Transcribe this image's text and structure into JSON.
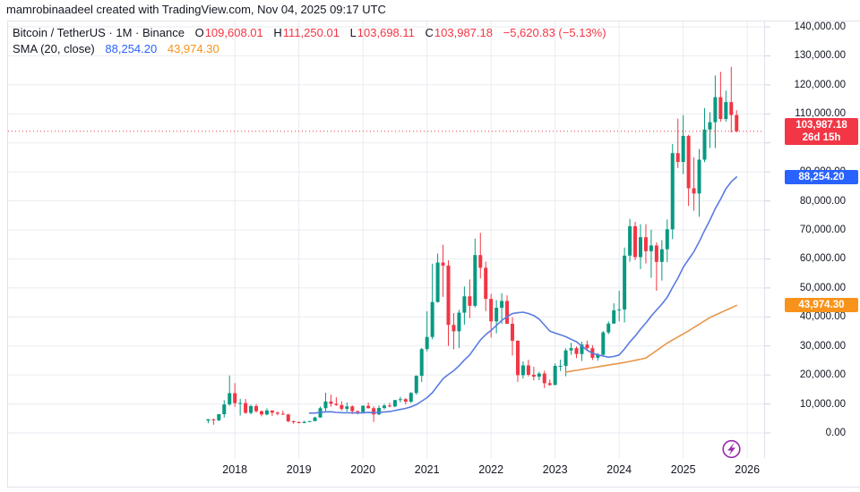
{
  "title": "mamrobinaadeel created with TradingView.com, Nov 04, 2025 09:17 UTC",
  "legend": {
    "symbol_line": "Bitcoin / TetherUS · 1M · Binance",
    "open_label": "O",
    "open": "109,608.01",
    "high_label": "H",
    "high": "111,250.01",
    "low_label": "L",
    "low": "103,698.11",
    "close_label": "C",
    "close": "103,987.18",
    "change": "−5,620.83 (−5.13%)",
    "sma_label": "SMA (20, close)",
    "sma_fast_value": "88,254.20",
    "sma_slow_value": "43,974.30"
  },
  "badges": {
    "last": {
      "text": "103,987.18",
      "countdown": "26d 15h",
      "value": 103987.18,
      "color": "#f23645"
    },
    "sma_fast": {
      "text": "88,254.20",
      "value": 88254.2,
      "color": "#2962ff"
    },
    "sma_slow": {
      "text": "43,974.30",
      "value": 43974.3,
      "color": "#f7931a"
    }
  },
  "price_axis": {
    "labels": [
      {
        "text": "0.00",
        "value": 0
      },
      {
        "text": "10,000.00",
        "value": 10000
      },
      {
        "text": "20,000.00",
        "value": 20000
      },
      {
        "text": "30,000.00",
        "value": 30000
      },
      {
        "text": "40,000.00",
        "value": 40000
      },
      {
        "text": "50,000.00",
        "value": 50000
      },
      {
        "text": "60,000.00",
        "value": 60000
      },
      {
        "text": "70,000.00",
        "value": 70000
      },
      {
        "text": "80,000.00",
        "value": 80000
      },
      {
        "text": "90,000.00",
        "value": 90000
      },
      {
        "text": "110,000.00",
        "value": 110000
      },
      {
        "text": "120,000.00",
        "value": 120000
      },
      {
        "text": "130,000.00",
        "value": 130000
      },
      {
        "text": "140,000.00",
        "value": 140000
      }
    ]
  },
  "time_axis": {
    "labels": [
      {
        "text": "2018",
        "month_index": 5
      },
      {
        "text": "2019",
        "month_index": 17
      },
      {
        "text": "2020",
        "month_index": 29
      },
      {
        "text": "2021",
        "month_index": 41
      },
      {
        "text": "2022",
        "month_index": 53
      },
      {
        "text": "2023",
        "month_index": 65
      },
      {
        "text": "2024",
        "month_index": 77
      },
      {
        "text": "2025",
        "month_index": 89
      },
      {
        "text": "2026",
        "month_index": 101
      }
    ]
  },
  "chart_data": {
    "type": "candlestick",
    "symbol": "Bitcoin / TetherUS",
    "interval": "1M",
    "exchange": "Binance",
    "start_month": "2017-08",
    "y_axis": {
      "min": 0,
      "max": 140000,
      "step": 10000
    },
    "last_close": 103987.18,
    "sma_fast_period": 20,
    "ohlc": [
      [
        4261,
        4745,
        3355,
        4724
      ],
      [
        4689,
        4939,
        2817,
        4378
      ],
      [
        4378,
        6498,
        4110,
        6468
      ],
      [
        6463,
        11300,
        5325,
        9838
      ],
      [
        9837,
        19798,
        9380,
        13716
      ],
      [
        13715,
        17176,
        9035,
        10285
      ],
      [
        10285,
        11786,
        6000,
        10326
      ],
      [
        10325,
        11710,
        6600,
        6923
      ],
      [
        6922,
        9759,
        6430,
        9246
      ],
      [
        9246,
        9996,
        7032,
        7494
      ],
      [
        7494,
        7786,
        5750,
        6390
      ],
      [
        6391,
        8491,
        6070,
        7735
      ],
      [
        7735,
        7760,
        5880,
        7011
      ],
      [
        7011,
        7410,
        6111,
        6626
      ],
      [
        6626,
        7680,
        6205,
        6371
      ],
      [
        6369,
        6615,
        3652,
        4041
      ],
      [
        4041,
        4312,
        3156,
        3702
      ],
      [
        3701,
        4069,
        3349,
        3434
      ],
      [
        3434,
        4190,
        3331,
        3816
      ],
      [
        3816,
        4131,
        3661,
        4105
      ],
      [
        4105,
        5627,
        4054,
        5320
      ],
      [
        5321,
        9074,
        5262,
        8555
      ],
      [
        8555,
        13880,
        7432,
        10854
      ],
      [
        10854,
        13200,
        9049,
        10081
      ],
      [
        10080,
        12325,
        9360,
        9630
      ],
      [
        9630,
        10949,
        7714,
        8290
      ],
      [
        8290,
        10540,
        7293,
        9153
      ],
      [
        9152,
        9550,
        6515,
        7561
      ],
      [
        7561,
        7744,
        6430,
        7195
      ],
      [
        7195,
        9578,
        6853,
        9350
      ],
      [
        9351,
        10500,
        8403,
        8531
      ],
      [
        8531,
        9188,
        3782,
        6412
      ],
      [
        6412,
        9460,
        6150,
        8620
      ],
      [
        8620,
        10067,
        8101,
        9448
      ],
      [
        9448,
        10380,
        8816,
        9137
      ],
      [
        9138,
        11444,
        8893,
        11335
      ],
      [
        11335,
        12468,
        10518,
        11649
      ],
      [
        11649,
        12050,
        9825,
        10776
      ],
      [
        10776,
        14100,
        10371,
        13791
      ],
      [
        13791,
        19863,
        13195,
        19695
      ],
      [
        19695,
        29300,
        17572,
        28923
      ],
      [
        28923,
        41950,
        28130,
        33092
      ],
      [
        33092,
        58352,
        32296,
        45135
      ],
      [
        45134,
        61844,
        44950,
        58740
      ],
      [
        58739,
        64854,
        46930,
        57694
      ],
      [
        57694,
        59500,
        30000,
        37253
      ],
      [
        37253,
        41330,
        28805,
        35045
      ],
      [
        35045,
        42448,
        29278,
        41461
      ],
      [
        41461,
        50500,
        37332,
        47100
      ],
      [
        47100,
        52920,
        39600,
        43824
      ],
      [
        43820,
        67000,
        43283,
        61318
      ],
      [
        61318,
        69000,
        53256,
        56950
      ],
      [
        56950,
        59053,
        42000,
        46216
      ],
      [
        46216,
        47990,
        32917,
        38466
      ],
      [
        38466,
        45821,
        34322,
        43160
      ],
      [
        43160,
        48189,
        37555,
        45510
      ],
      [
        45510,
        47444,
        37578,
        37630
      ],
      [
        37630,
        39918,
        26700,
        31792
      ],
      [
        31792,
        31957,
        17622,
        19924
      ],
      [
        19924,
        24668,
        18780,
        23293
      ],
      [
        23293,
        25211,
        19526,
        20048
      ],
      [
        20048,
        22799,
        18125,
        19416
      ],
      [
        19416,
        21085,
        18190,
        20490
      ],
      [
        20490,
        21473,
        15476,
        17163
      ],
      [
        17163,
        18387,
        16256,
        16537
      ],
      [
        16537,
        23960,
        16499,
        23125
      ],
      [
        23125,
        25250,
        21351,
        23141
      ],
      [
        23141,
        29184,
        19549,
        28465
      ],
      [
        28465,
        31059,
        26942,
        29233
      ],
      [
        29233,
        29820,
        25811,
        27210
      ],
      [
        27210,
        31431,
        24797,
        30472
      ],
      [
        30472,
        31818,
        28850,
        29232
      ],
      [
        29232,
        30242,
        25166,
        25932
      ],
      [
        25932,
        27483,
        24901,
        26962
      ],
      [
        26962,
        35150,
        26538,
        34656
      ],
      [
        34656,
        38450,
        34029,
        37712
      ],
      [
        37712,
        44700,
        37615,
        42265
      ],
      [
        42265,
        48969,
        38501,
        42580
      ],
      [
        42580,
        63933,
        38100,
        61130
      ],
      [
        61130,
        73777,
        59005,
        71280
      ],
      [
        71280,
        72797,
        59600,
        60622
      ],
      [
        60622,
        71979,
        56500,
        67472
      ],
      [
        67472,
        71997,
        58402,
        62668
      ],
      [
        62668,
        70079,
        53499,
        64619
      ],
      [
        64619,
        65659,
        49000,
        58969
      ],
      [
        58969,
        66500,
        52530,
        63327
      ],
      [
        63327,
        73620,
        58895,
        70215
      ],
      [
        70215,
        99588,
        66835,
        96449
      ],
      [
        96449,
        108353,
        91317,
        93429
      ],
      [
        93429,
        109588,
        89256,
        102405
      ],
      [
        102405,
        102781,
        78258,
        84349
      ],
      [
        84349,
        95000,
        76606,
        82548
      ],
      [
        82548,
        97895,
        74508,
        94207
      ],
      [
        94207,
        111980,
        93385,
        104598
      ],
      [
        104598,
        110530,
        98240,
        107135
      ],
      [
        107135,
        123218,
        98200,
        115765
      ],
      [
        115765,
        124474,
        107350,
        108237
      ],
      [
        108237,
        118000,
        107270,
        114056
      ],
      [
        114056,
        126199,
        103558,
        109604
      ],
      [
        109608.01,
        111250.01,
        103698.11,
        103987.18
      ]
    ],
    "sma_slow_points": [
      [
        67,
        21000
      ],
      [
        73,
        22800
      ],
      [
        78,
        24300
      ],
      [
        82,
        25800
      ],
      [
        86,
        31000
      ],
      [
        90,
        35200
      ],
      [
        94,
        39800
      ],
      [
        99,
        43974.3
      ]
    ]
  },
  "colors": {
    "up": "#089981",
    "down": "#f23645",
    "sma_fast_line": "#5a7be0",
    "sma_slow_line": "#e9964a",
    "last_price_line": "#f23645",
    "grid": "#e9ebf0",
    "border": "#e0e3eb",
    "axis_stub": "#d1d4dc",
    "axis_text": "#131722",
    "logo": "#9c27b0"
  },
  "logo_icon": "lightning-bolt"
}
